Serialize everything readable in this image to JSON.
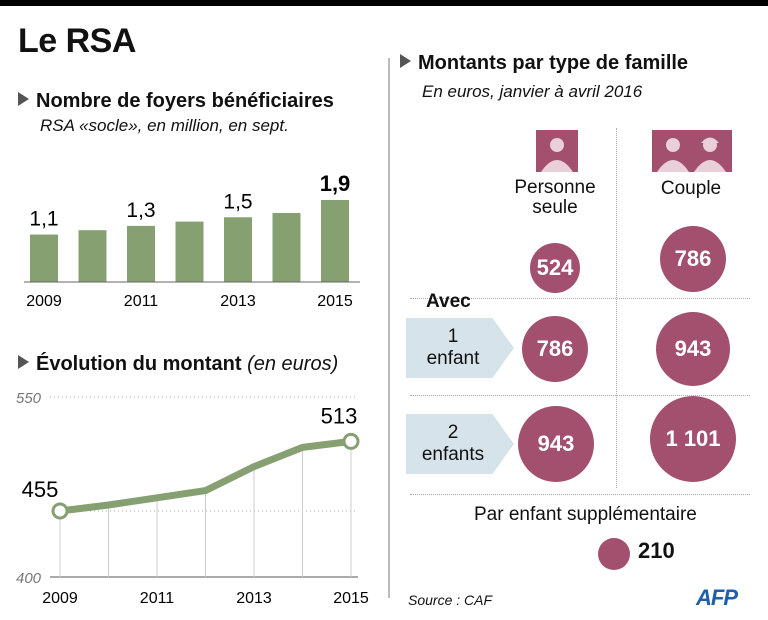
{
  "title": "Le RSA",
  "bar_section": {
    "title": "Nombre de foyers bénéficiaires",
    "subtitle": "RSA «socle», en million, en sept."
  },
  "line_section": {
    "title": "Évolution du montant",
    "title_suffix": "(en euros)"
  },
  "right_section": {
    "title": "Montants par type de famille",
    "subtitle": "En euros, janvier à avril 2016",
    "columns": [
      "Personne seule",
      "Couple"
    ],
    "avec": "Avec",
    "rows": [
      {
        "label": "",
        "values": [
          "524",
          "786"
        ]
      },
      {
        "label_num": "1",
        "label_text": "enfant",
        "values": [
          "786",
          "943"
        ]
      },
      {
        "label_num": "2",
        "label_text": "enfants",
        "values": [
          "943",
          "1 101"
        ]
      }
    ],
    "extra_label": "Par enfant supplémentaire",
    "extra_value": "210"
  },
  "source": "Source : CAF",
  "logo": "AFP",
  "colors": {
    "bar": "#87a072",
    "line": "#87a072",
    "circle": "#a3506f",
    "arrow": "#d7e3ea"
  },
  "chart_data": [
    {
      "type": "bar",
      "categories": [
        "2009",
        "2010",
        "2011",
        "2012",
        "2013",
        "2014",
        "2015"
      ],
      "values": [
        1.1,
        1.2,
        1.3,
        1.4,
        1.5,
        1.6,
        1.9
      ],
      "data_labels": [
        "1,1",
        "",
        "1,3",
        "",
        "1,5",
        "",
        "1,9"
      ],
      "tick_labels": [
        "2009",
        "",
        "2011",
        "",
        "2013",
        "",
        "2015"
      ],
      "ylim": [
        0,
        2
      ]
    },
    {
      "type": "line",
      "x": [
        "2009",
        "2010",
        "2011",
        "2012",
        "2013",
        "2014",
        "2015"
      ],
      "values": [
        455,
        460,
        466,
        472,
        492,
        508,
        513
      ],
      "data_labels": [
        "455",
        "",
        "",
        "",
        "",
        "",
        "513"
      ],
      "tick_labels": [
        "2009",
        "",
        "2011",
        "",
        "2013",
        "",
        "2015"
      ],
      "y_ticks": [
        "550",
        "400"
      ],
      "ylim": [
        400,
        550
      ]
    }
  ]
}
